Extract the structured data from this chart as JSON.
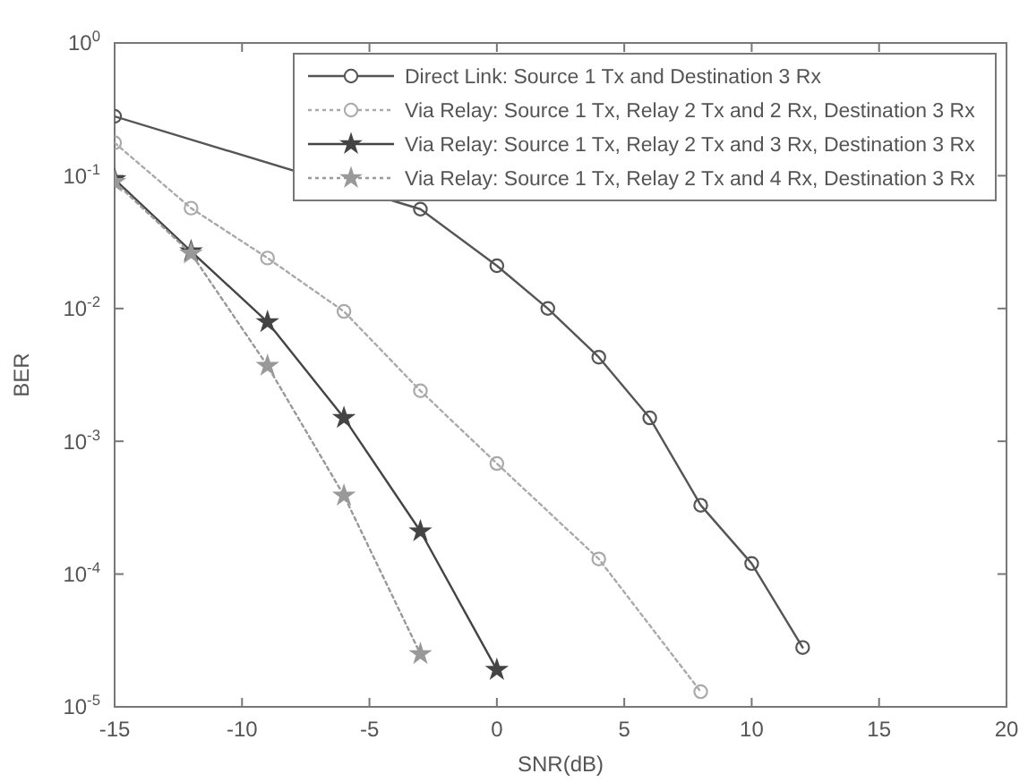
{
  "chart_data": {
    "type": "line",
    "xlabel": "SNR(dB)",
    "ylabel": "BER",
    "log": "y",
    "xlim": [
      -15,
      20
    ],
    "xticks": [
      -15,
      -10,
      -5,
      0,
      5,
      10,
      15,
      20
    ],
    "ylim": [
      1e-05,
      1
    ],
    "yticks": [
      {
        "value": 1,
        "label": "10$^{0}$"
      },
      {
        "value": 0.1,
        "label": "10$^{-1}$"
      },
      {
        "value": 0.01,
        "label": "10$^{-2}$"
      },
      {
        "value": 0.001,
        "label": "10$^{-3}$"
      },
      {
        "value": 0.0001,
        "label": "10$^{-4}$"
      },
      {
        "value": 1e-05,
        "label": "10$^{-5}$"
      }
    ],
    "grid": false,
    "legend": "top right",
    "series": [
      {
        "name": "Direct Link: Source 1 Tx and Destination 3 Rx",
        "color": "#555555",
        "marker": "circle",
        "line_style": "solid",
        "x": [
          -15,
          -3,
          0,
          2,
          4,
          6,
          8,
          10,
          12
        ],
        "values": [
          0.28,
          0.056,
          0.021,
          0.01,
          0.0043,
          0.0015,
          0.00033,
          0.00012,
          2.8e-05
        ]
      },
      {
        "name": "Via Relay: Source 1 Tx, Relay 2 Tx and 2 Rx, Destination 3 Rx",
        "color": "#aaaaaa",
        "marker": "circle",
        "line_style": "dotted",
        "x": [
          -15,
          -12,
          -9,
          -6,
          -3,
          0,
          4,
          8
        ],
        "values": [
          0.177,
          0.057,
          0.024,
          0.0095,
          0.0024,
          0.00068,
          0.00013,
          1.3e-05
        ]
      },
      {
        "name": "Via Relay: Source 1 Tx, Relay 2 Tx and 3 Rx, Destination 3 Rx",
        "color": "#444444",
        "marker": "star",
        "line_style": "solid",
        "x": [
          -15,
          -12,
          -9,
          -6,
          -3,
          0
        ],
        "values": [
          0.094,
          0.027,
          0.0079,
          0.0015,
          0.00021,
          1.9e-05
        ]
      },
      {
        "name": "Via Relay: Source 1 Tx, Relay 2 Tx and 4 Rx, Destination 3 Rx",
        "color": "#999999",
        "marker": "star",
        "line_style": "dotted",
        "x": [
          -15,
          -12,
          -9,
          -6,
          -3
        ],
        "values": [
          0.09,
          0.026,
          0.0037,
          0.00039,
          2.5e-05
        ]
      }
    ]
  }
}
